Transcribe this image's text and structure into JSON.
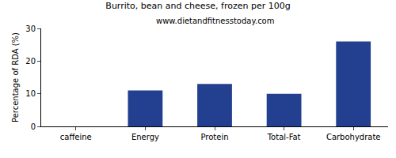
{
  "chart_data": {
    "type": "bar",
    "title": "Burrito, bean and cheese, frozen per 100g",
    "subtitle": "www.dietandfitnesstoday.com",
    "y_label": "Percentage of RDA (%)",
    "categories": [
      "caffeine",
      "Energy",
      "Protein",
      "Total-Fat",
      "Carbohydrate"
    ],
    "values": [
      0,
      11,
      13,
      10,
      26
    ],
    "color": "#233f8f",
    "ylim": [
      0,
      30
    ],
    "yticks": [
      0,
      10,
      20,
      30
    ],
    "grid": false
  }
}
